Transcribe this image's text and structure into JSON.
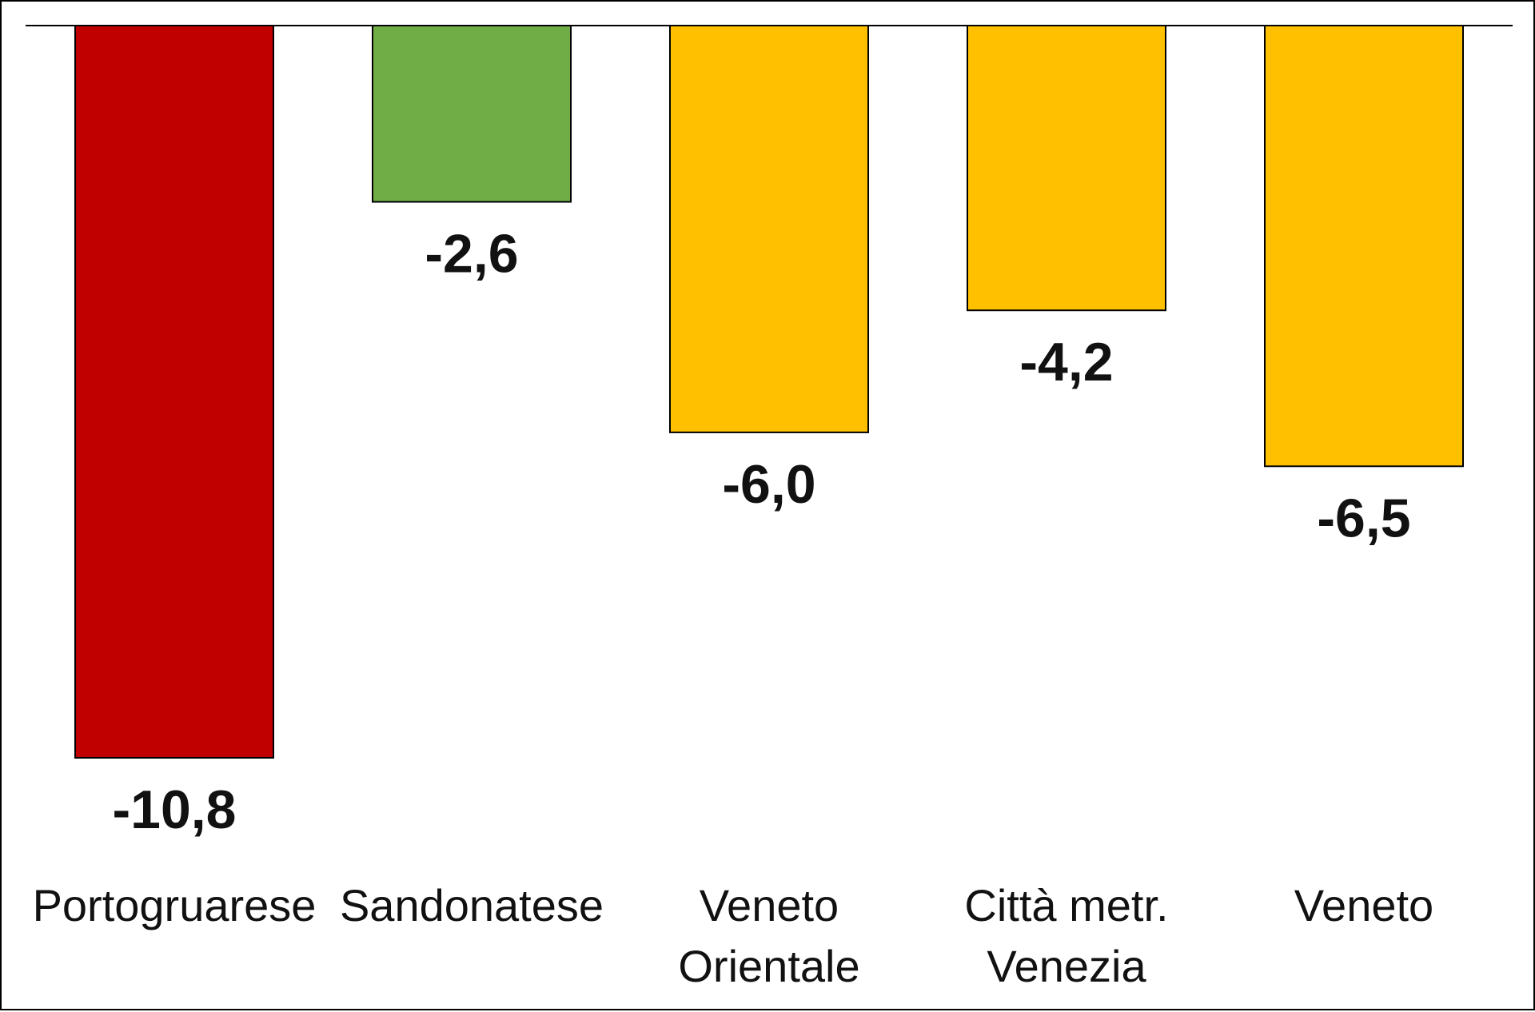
{
  "chart_data": {
    "type": "bar",
    "categories": [
      [
        "Portogruarese"
      ],
      [
        "Sandonatese"
      ],
      [
        "Veneto",
        "Orientale"
      ],
      [
        "Città metr.",
        "Venezia"
      ],
      [
        "Veneto"
      ]
    ],
    "values": [
      -10.8,
      -2.6,
      -6.0,
      -4.2,
      -6.5
    ],
    "value_labels": [
      "-10,8",
      "-2,6",
      "-6,0",
      "-4,2",
      "-6,5"
    ],
    "bar_colors": [
      "#c00000",
      "#70ad47",
      "#ffc000",
      "#ffc000",
      "#ffc000"
    ],
    "ylim": [
      -10.8,
      0
    ],
    "grid": false,
    "legend": "none"
  }
}
